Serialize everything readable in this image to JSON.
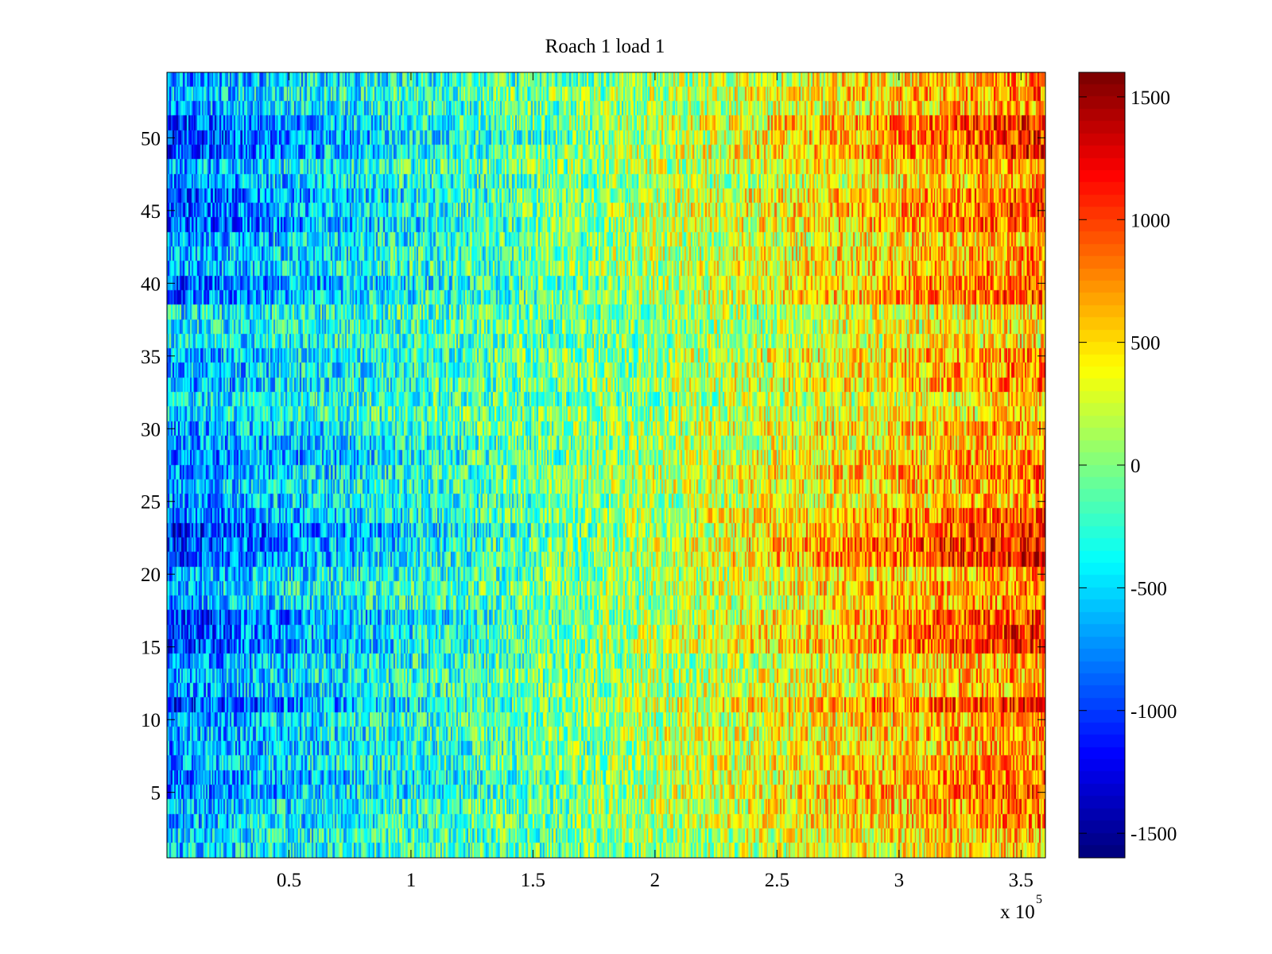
{
  "chart_data": {
    "type": "heatmap",
    "title": "Roach 1 load 1",
    "xlabel": "",
    "ylabel": "",
    "x_multiplier_label": "x 10",
    "x_multiplier_exponent": "5",
    "xlim": [
      0,
      3.6
    ],
    "ylim": [
      0.5,
      54.5
    ],
    "x_ticks": [
      0.5,
      1,
      1.5,
      2,
      2.5,
      3,
      3.5
    ],
    "x_tick_labels": [
      "0.5",
      "1",
      "1.5",
      "2",
      "2.5",
      "3",
      "3.5"
    ],
    "y_ticks": [
      5,
      10,
      15,
      20,
      25,
      30,
      35,
      40,
      45,
      50
    ],
    "y_tick_labels": [
      "5",
      "10",
      "15",
      "20",
      "25",
      "30",
      "35",
      "40",
      "45",
      "50"
    ],
    "rows": 54,
    "columns": 600,
    "colormap": "jet",
    "color_range": [
      -1600,
      1600
    ],
    "colorbar_ticks": [
      1500,
      1000,
      500,
      0,
      -500,
      -1000,
      -1500
    ],
    "colorbar_tick_labels": [
      "1500",
      "1000",
      "500",
      "0",
      "-500",
      "-1000",
      "-1500"
    ],
    "trend": {
      "description": "values rise roughly linearly from left (about -700) to right (about +700) with per-pixel noise",
      "start_value": -700,
      "end_value": 750,
      "noise_amplitude": 520
    },
    "strong_rows": [
      {
        "rows": [
          49,
          51
        ],
        "amplitude": 1.5
      },
      {
        "rows": [
          44,
          46
        ],
        "amplitude": 1.35
      },
      {
        "rows": [
          39,
          40
        ],
        "amplitude": 1.3
      },
      {
        "rows": [
          21,
          23
        ],
        "amplitude": 1.6
      },
      {
        "rows": [
          15,
          17
        ],
        "amplitude": 1.5
      },
      {
        "rows": [
          11,
          11
        ],
        "amplitude": 1.55
      },
      {
        "rows": [
          5,
          6
        ],
        "amplitude": 1.25
      },
      {
        "rows": [
          24,
          24
        ],
        "amplitude": 1.3
      },
      {
        "rows": [
          27,
          28
        ],
        "amplitude": 1.2
      }
    ],
    "weak_rows": [
      {
        "rows": [
          31,
          32
        ],
        "amplitude": 0.7
      },
      {
        "rows": [
          36,
          38
        ],
        "amplitude": 0.65
      },
      {
        "rows": [
          1,
          2
        ],
        "amplitude": 0.8
      }
    ]
  },
  "colors": {
    "axis": "#000000",
    "background": "#ffffff"
  }
}
